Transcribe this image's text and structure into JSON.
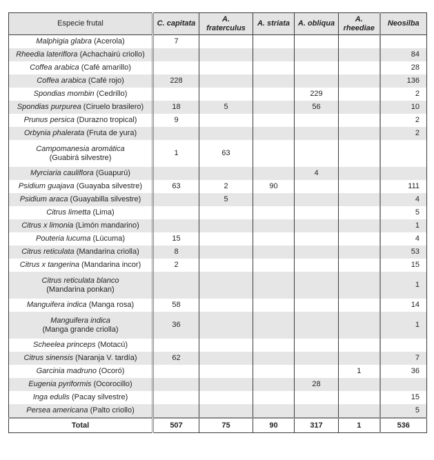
{
  "headers": [
    "Especie frutal",
    "C. capitata",
    "A. fraterculus",
    "A. striata",
    "A. obliqua",
    "A. rheediae",
    "Neosilba"
  ],
  "rows": [
    {
      "sci": "Malphigia glabra",
      "common": "(Acerola)",
      "vals": [
        "7",
        "",
        "",
        "",
        "",
        ""
      ]
    },
    {
      "sci": "Rheedia lateriflora",
      "common": "(Achachairú criollo)",
      "vals": [
        "",
        "",
        "",
        "",
        "",
        "84"
      ]
    },
    {
      "sci": "Coffea arabica",
      "common": "(Café amarillo)",
      "vals": [
        "",
        "",
        "",
        "",
        "",
        "28"
      ]
    },
    {
      "sci": "Coffea arabica",
      "common": "(Café rojo)",
      "vals": [
        "228",
        "",
        "",
        "",
        "",
        "136"
      ]
    },
    {
      "sci": "Spondias mombin",
      "common": "(Cedrillo)",
      "vals": [
        "",
        "",
        "",
        "229",
        "",
        "2"
      ]
    },
    {
      "sci": "Spondias purpurea",
      "common": "(Ciruelo brasilero)",
      "vals": [
        "18",
        "5",
        "",
        "56",
        "",
        "10"
      ]
    },
    {
      "sci": "Prunus persica",
      "common": "(Durazno tropical)",
      "vals": [
        "9",
        "",
        "",
        "",
        "",
        "2"
      ]
    },
    {
      "sci": "Orbynia phalerata",
      "common": "(Fruta de yura)",
      "vals": [
        "",
        "",
        "",
        "",
        "",
        "2"
      ]
    },
    {
      "sci": "Campomanesia aromática",
      "common": "(Guabirá silvestre)",
      "wrap": true,
      "vals": [
        "1",
        "63",
        "",
        "",
        "",
        ""
      ]
    },
    {
      "sci": "Myrciaria cauliflora",
      "common": "(Guapurú)",
      "vals": [
        "",
        "",
        "",
        "4",
        "",
        ""
      ]
    },
    {
      "sci": "Psidium guajava",
      "common": "(Guayaba silvestre)",
      "vals": [
        "63",
        "2",
        "90",
        "",
        "",
        "111"
      ]
    },
    {
      "sci": "Psidium araca",
      "common": "(Guayabilla silvestre)",
      "vals": [
        "",
        "5",
        "",
        "",
        "",
        "4"
      ]
    },
    {
      "sci": "Citrus limetta",
      "common": "(Lima)",
      "vals": [
        "",
        "",
        "",
        "",
        "",
        "5"
      ]
    },
    {
      "sci": "Citrus x limonia",
      "common": "(Limón mandarino)",
      "vals": [
        "",
        "",
        "",
        "",
        "",
        "1"
      ]
    },
    {
      "sci": "Pouteria lucuma",
      "common": "(Lúcuma)",
      "vals": [
        "15",
        "",
        "",
        "",
        "",
        "4"
      ]
    },
    {
      "sci": "Citrus reticulata",
      "common": "(Mandarina criolla)",
      "vals": [
        "8",
        "",
        "",
        "",
        "",
        "53"
      ]
    },
    {
      "sci": "Citrus x tangerina",
      "common": "(Mandarina incor)",
      "vals": [
        "2",
        "",
        "",
        "",
        "",
        "15"
      ]
    },
    {
      "sci": "Citrus reticulata blanco",
      "common": "(Mandarina ponkan)",
      "wrap": true,
      "vals": [
        "",
        "",
        "",
        "",
        "",
        "1"
      ]
    },
    {
      "sci": "Manguifera indica",
      "common": " (Manga rosa)",
      "vals": [
        "58",
        "",
        "",
        "",
        "",
        "14"
      ]
    },
    {
      "sci": "Manguifera indica",
      "common": "(Manga grande criolla)",
      "wrap": true,
      "vals": [
        "36",
        "",
        "",
        "",
        "",
        "1"
      ]
    },
    {
      "sci": "Scheelea princeps",
      "common": "(Motacú)",
      "vals": [
        "",
        "",
        "",
        "",
        "",
        ""
      ]
    },
    {
      "sci": "Citrus sinensis",
      "common": "(Naranja V. tardía)",
      "vals": [
        "62",
        "",
        "",
        "",
        "",
        "7"
      ]
    },
    {
      "sci": "Garcinia madruno",
      "common": "(Ocoró)",
      "vals": [
        "",
        "",
        "",
        "",
        "1",
        "36"
      ]
    },
    {
      "sci": "Eugenia pyriformis",
      "common": "(Ocorocillo)",
      "vals": [
        "",
        "",
        "",
        "28",
        "",
        ""
      ]
    },
    {
      "sci": "Inga edulis",
      "common": "(Pacay silvestre)",
      "vals": [
        "",
        "",
        "",
        "",
        "",
        "15"
      ]
    },
    {
      "sci": "Persea americana",
      "common": "(Palto criollo)",
      "vals": [
        "",
        "",
        "",
        "",
        "",
        "5"
      ]
    }
  ],
  "total": {
    "label": "Total",
    "vals": [
      "507",
      "75",
      "90",
      "317",
      "1",
      "536"
    ]
  },
  "colors": {
    "header_bg": "#e4e4e5",
    "stripe_bg": "#e6e6e7",
    "border": "#3a3a3a"
  }
}
